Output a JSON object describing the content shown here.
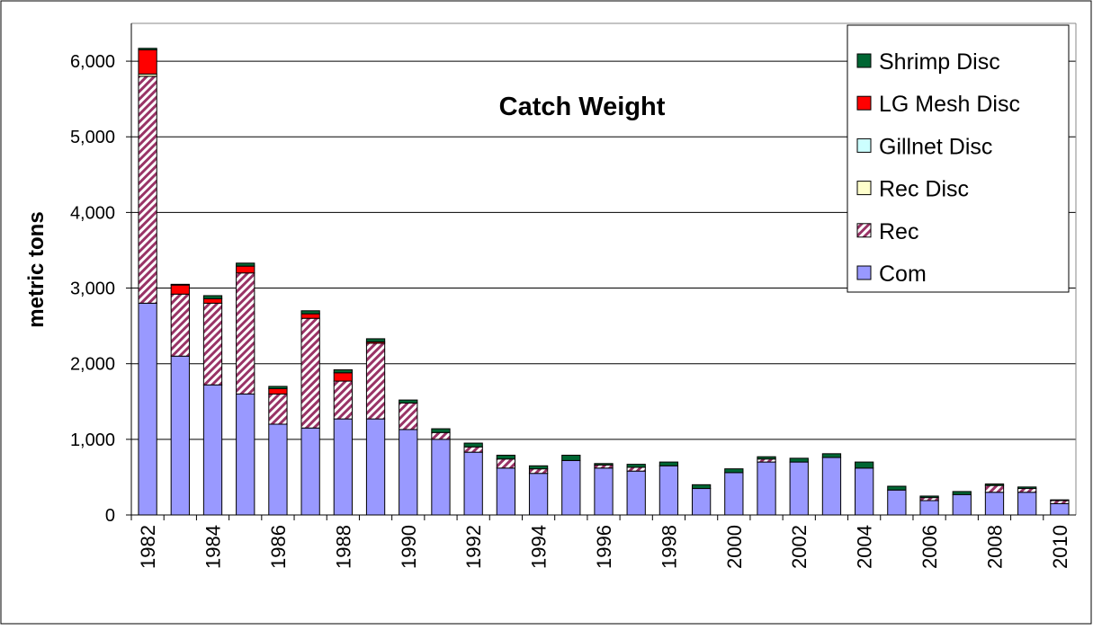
{
  "chart_data": {
    "type": "stacked-bar",
    "title": "Catch Weight",
    "y_label": "metric tons",
    "categories": [
      "1982",
      null,
      "1984",
      null,
      "1986",
      null,
      "1988",
      null,
      "1990",
      null,
      "1992",
      null,
      "1994",
      null,
      "1996",
      null,
      "1998",
      null,
      "2000",
      null,
      "2002",
      null,
      "2004",
      null,
      "2006",
      null,
      "2008",
      null,
      "2010"
    ],
    "series": [
      {
        "name": "Com",
        "color": "#9999ff",
        "values": [
          2800,
          2100,
          1720,
          1600,
          1200,
          1150,
          1270,
          1270,
          1130,
          1000,
          830,
          620,
          550,
          720,
          620,
          580,
          650,
          350,
          560,
          700,
          700,
          760,
          620,
          330,
          190,
          270,
          300,
          300,
          150
        ]
      },
      {
        "name": "Rec",
        "color": "#993366",
        "pattern": "diagonal",
        "values": [
          3000,
          820,
          1080,
          1600,
          400,
          1450,
          500,
          1000,
          350,
          90,
          70,
          120,
          60,
          0,
          40,
          50,
          0,
          0,
          0,
          40,
          0,
          0,
          0,
          0,
          40,
          0,
          90,
          50,
          40
        ]
      },
      {
        "name": "Rec Disc",
        "color": "#ffffcc",
        "values": [
          30,
          0,
          0,
          0,
          0,
          0,
          0,
          0,
          0,
          0,
          0,
          0,
          0,
          0,
          0,
          0,
          0,
          0,
          0,
          0,
          0,
          0,
          0,
          0,
          0,
          0,
          0,
          0,
          0
        ]
      },
      {
        "name": "Gillnet Disc",
        "color": "#ccffff",
        "values": [
          0,
          0,
          0,
          0,
          0,
          0,
          0,
          0,
          0,
          0,
          0,
          0,
          0,
          0,
          0,
          0,
          0,
          0,
          0,
          0,
          0,
          0,
          0,
          0,
          0,
          0,
          0,
          0,
          0
        ]
      },
      {
        "name": "LG Mesh Disc",
        "color": "#ff0000",
        "values": [
          320,
          120,
          60,
          90,
          70,
          60,
          110,
          20,
          0,
          0,
          0,
          0,
          0,
          0,
          0,
          0,
          0,
          0,
          0,
          0,
          0,
          0,
          0,
          0,
          0,
          0,
          0,
          0,
          0
        ]
      },
      {
        "name": "Shrimp Disc",
        "color": "#006633",
        "values": [
          20,
          10,
          40,
          40,
          30,
          40,
          40,
          40,
          40,
          50,
          50,
          50,
          40,
          70,
          20,
          40,
          50,
          50,
          50,
          30,
          50,
          50,
          80,
          50,
          20,
          40,
          20,
          20,
          10
        ]
      }
    ],
    "ylim": [
      0,
      6500
    ],
    "yticks": [
      0,
      {
        "value": 1000,
        "label": "1,000"
      },
      {
        "value": 2000,
        "label": "2,000"
      },
      {
        "value": 3000,
        "label": "3,000"
      },
      {
        "value": 4000,
        "label": "4,000"
      },
      {
        "value": 5000,
        "label": "5,000"
      },
      {
        "value": 6000,
        "label": "6,000"
      }
    ],
    "grid": true,
    "legend": "top-right"
  }
}
